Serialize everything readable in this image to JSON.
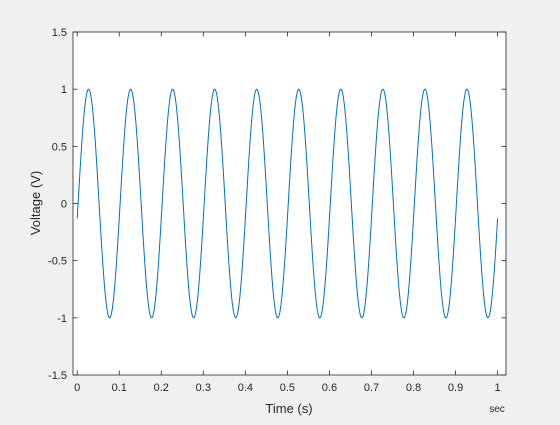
{
  "chart_data": {
    "type": "line",
    "title": "",
    "xlabel": "Time (s)",
    "ylabel": "Voltage (V)",
    "x_unit_label": "sec",
    "xlim": [
      -0.01,
      1.02
    ],
    "ylim": [
      -1.5,
      1.5
    ],
    "grid": false,
    "legend": "none",
    "x_ticks": [
      0,
      0.1,
      0.2,
      0.3,
      0.4,
      0.5,
      0.6,
      0.7,
      0.8,
      0.9,
      1
    ],
    "x_tick_labels": [
      "0",
      "0.1",
      "0.2",
      "0.3",
      "0.4",
      "0.5",
      "0.6",
      "0.7",
      "0.8",
      "0.9",
      "1"
    ],
    "y_ticks": [
      -1.5,
      -1,
      -0.5,
      0,
      0.5,
      1,
      1.5
    ],
    "y_tick_labels": [
      "-1.5",
      "-1",
      "-0.5",
      "0",
      "0.5",
      "1",
      "1.5"
    ],
    "series": [
      {
        "function": "sine",
        "amplitude": 1,
        "frequency_hz": 10,
        "phase_rad": -0.13,
        "x_start": 0,
        "x_end": 1,
        "samples": 1001,
        "color": "#0072bd"
      }
    ]
  }
}
